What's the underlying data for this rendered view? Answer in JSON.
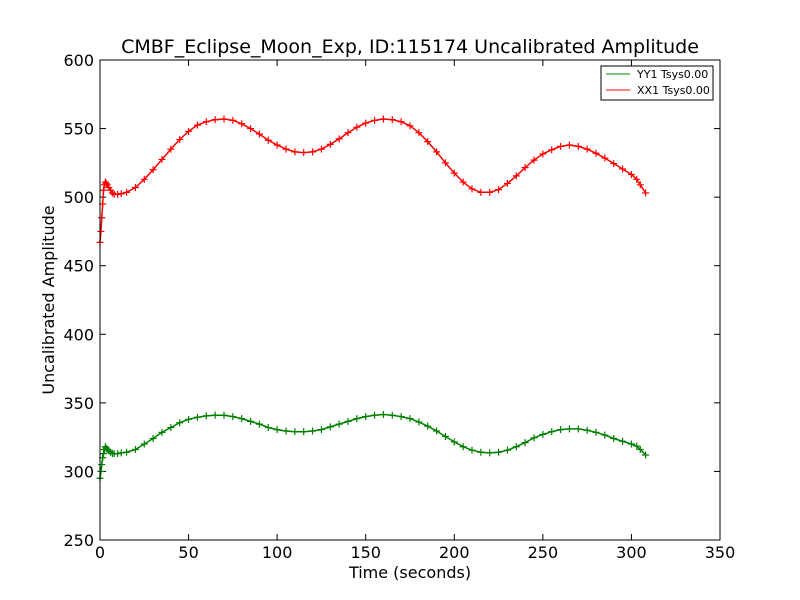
{
  "chart_data": {
    "type": "line",
    "title": "CMBF_Eclipse_Moon_Exp, ID:115174 Uncalibrated Amplitude",
    "xlabel": "Time (seconds)",
    "ylabel": "Uncalibrated Amplitude",
    "xlim": [
      0,
      350
    ],
    "ylim": [
      250,
      600
    ],
    "xticks": [
      0,
      50,
      100,
      150,
      200,
      250,
      300,
      350
    ],
    "yticks": [
      250,
      300,
      350,
      400,
      450,
      500,
      550,
      600
    ],
    "grid": false,
    "legend_position": "top-right",
    "series": [
      {
        "name": "YY1 Tsys0.00",
        "color": "#008000",
        "marker": "+",
        "x": [
          0,
          0.5,
          1,
          1.5,
          2,
          2.5,
          3,
          3.5,
          4,
          5,
          6,
          7,
          8,
          10,
          12,
          15,
          20,
          25,
          30,
          35,
          40,
          45,
          50,
          55,
          60,
          65,
          70,
          75,
          80,
          85,
          90,
          95,
          100,
          105,
          110,
          115,
          120,
          125,
          130,
          135,
          140,
          145,
          150,
          155,
          160,
          165,
          170,
          175,
          180,
          185,
          190,
          195,
          200,
          205,
          210,
          215,
          220,
          225,
          230,
          235,
          240,
          245,
          250,
          255,
          260,
          265,
          270,
          275,
          280,
          285,
          290,
          295,
          300,
          303,
          305,
          308
        ],
        "y": [
          295,
          300,
          305,
          310,
          313,
          316,
          318,
          317,
          316,
          315,
          314,
          313,
          313,
          313,
          313.5,
          314,
          316,
          320,
          324,
          328.5,
          332,
          335.5,
          338,
          339.5,
          340.5,
          341,
          341,
          340,
          338.5,
          336.5,
          334.5,
          332,
          330.5,
          329.5,
          329,
          329,
          329.5,
          330.5,
          332.5,
          334.5,
          336.5,
          338.5,
          340,
          341,
          341.5,
          341,
          340,
          338.5,
          336,
          333,
          329.5,
          325.5,
          321.5,
          318,
          315.5,
          314,
          313.5,
          314,
          315.5,
          318,
          321,
          324.5,
          327,
          329,
          330.5,
          331,
          331,
          330,
          328.5,
          326.5,
          324,
          322,
          320,
          318.5,
          316,
          312
        ]
      },
      {
        "name": "XX1 Tsys0.00",
        "color": "#ff0000",
        "marker": "+",
        "x": [
          0,
          0.5,
          1,
          1.5,
          2,
          2.5,
          3,
          3.5,
          4,
          5,
          6,
          7,
          8,
          10,
          12,
          15,
          20,
          25,
          30,
          35,
          40,
          45,
          50,
          55,
          60,
          65,
          70,
          75,
          80,
          85,
          90,
          95,
          100,
          105,
          110,
          115,
          120,
          125,
          130,
          135,
          140,
          145,
          150,
          155,
          160,
          165,
          170,
          175,
          180,
          185,
          190,
          195,
          200,
          205,
          210,
          215,
          220,
          225,
          230,
          235,
          240,
          245,
          250,
          255,
          260,
          265,
          270,
          275,
          280,
          285,
          290,
          295,
          300,
          303,
          305,
          308
        ],
        "y": [
          467,
          475,
          485,
          495,
          505,
          509,
          511,
          510,
          509,
          507,
          505,
          503,
          502,
          502,
          502.5,
          503.5,
          507,
          513,
          520,
          527.5,
          535,
          542,
          548,
          552.5,
          555,
          556.5,
          557,
          556,
          553.5,
          550,
          546,
          541.5,
          538,
          535,
          533,
          532.5,
          533,
          535,
          538.5,
          542.5,
          547,
          551,
          554,
          556,
          557,
          556.5,
          555,
          552,
          547,
          540.5,
          533,
          525,
          517.5,
          511,
          506,
          503.5,
          503.5,
          505.5,
          510,
          515.5,
          521.5,
          527,
          531.5,
          534.5,
          537,
          538,
          537,
          535,
          532,
          528.5,
          524.5,
          520.5,
          516.5,
          513,
          509,
          503
        ]
      }
    ]
  }
}
